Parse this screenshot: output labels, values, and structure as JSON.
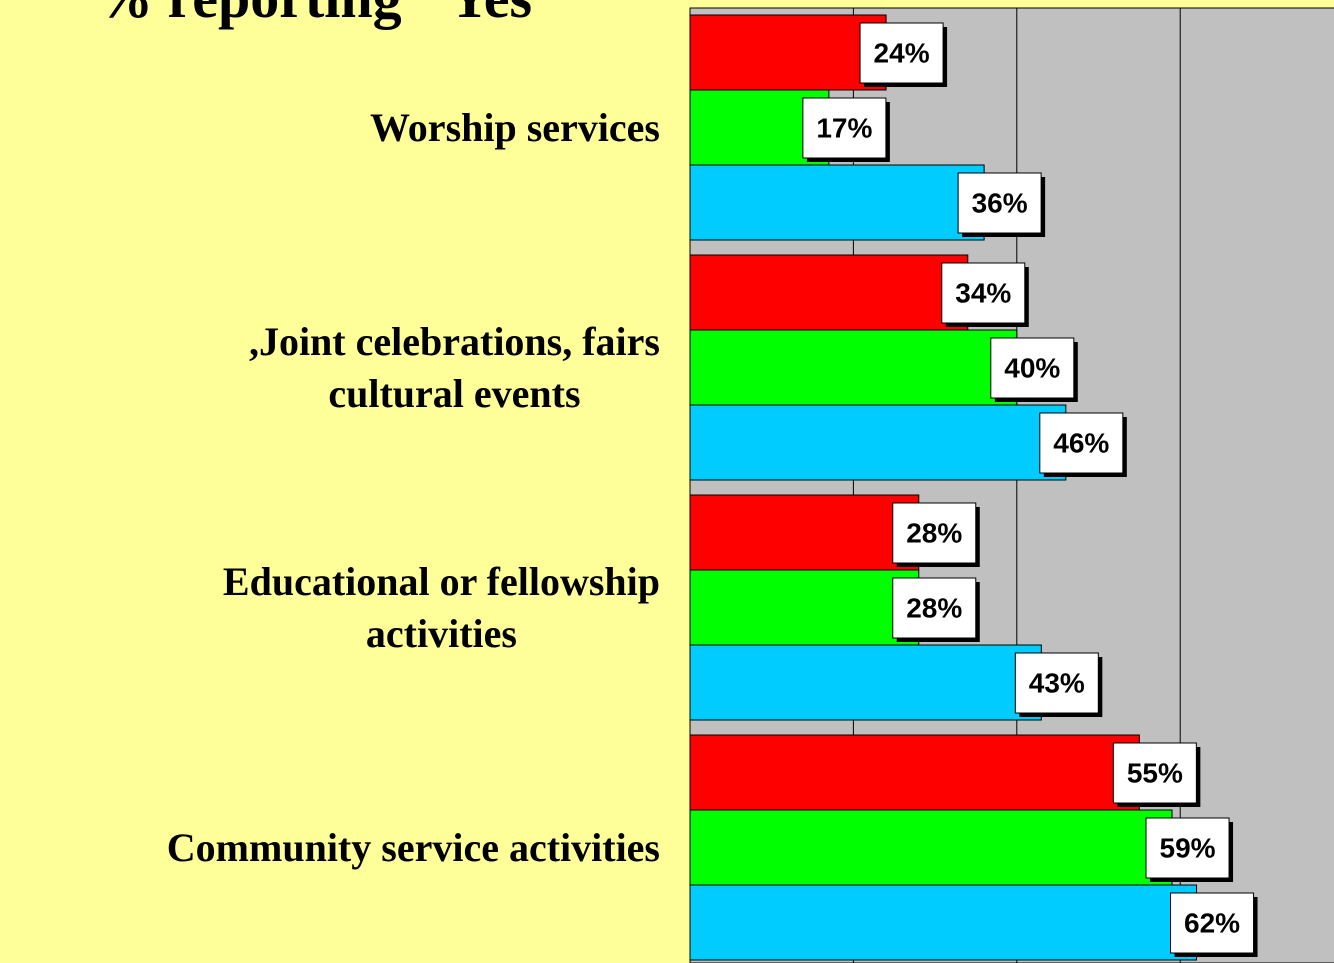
{
  "chart_data": {
    "type": "bar",
    "orientation": "horizontal",
    "title": "% reporting \"Yes\"",
    "categories": [
      "Worship services",
      ",Joint celebrations, fairs\ncultural events",
      "Educational or fellowship\nactivities",
      "Community service activities"
    ],
    "series": [
      {
        "color": "#ff0000",
        "values": [
          24,
          34,
          28,
          55
        ],
        "value_labels": [
          "24%",
          "34%",
          "28%",
          "55%"
        ]
      },
      {
        "color": "#00ff00",
        "values": [
          17,
          40,
          28,
          59
        ],
        "value_labels": [
          "17%",
          "40%",
          "28%",
          "59%"
        ]
      },
      {
        "color": "#00ccff",
        "values": [
          36,
          46,
          43,
          62
        ],
        "value_labels": [
          "36%",
          "46%",
          "43%",
          "62%"
        ]
      }
    ],
    "xlim": [
      0,
      80
    ],
    "xticks": [
      0,
      20,
      40,
      60,
      80
    ],
    "grid": true
  }
}
